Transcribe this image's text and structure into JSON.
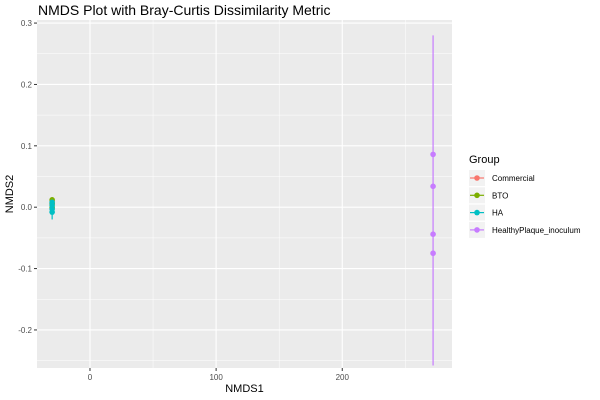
{
  "chart_data": {
    "type": "scatter",
    "title": "NMDS Plot with Bray-Curtis Dissimilarity Metric",
    "xlabel": "NMDS1",
    "ylabel": "NMDS2",
    "xlim": [
      -42,
      287
    ],
    "ylim": [
      -0.262,
      0.305
    ],
    "x_ticks": [
      0,
      100,
      200
    ],
    "x_tick_labels": [
      "0",
      "100",
      "200"
    ],
    "y_ticks": [
      -0.2,
      -0.1,
      0.0,
      0.1,
      0.2,
      0.3
    ],
    "y_tick_labels": [
      "-0.2",
      "-0.1",
      "0.0",
      "0.1",
      "0.2",
      "0.3"
    ],
    "grid": true,
    "legend": {
      "title": "Group",
      "placement": "right"
    },
    "series": [
      {
        "name": "Commercial",
        "color": "#F8766D",
        "points": [
          {
            "x": -30,
            "y": 0.01
          },
          {
            "x": -30,
            "y": 0.005
          },
          {
            "x": -30,
            "y": -0.002
          }
        ],
        "error_bar": [
          -0.008,
          0.014
        ]
      },
      {
        "name": "BTO",
        "color": "#7CAE00",
        "points": [
          {
            "x": -30,
            "y": 0.012
          },
          {
            "x": -30,
            "y": 0.006
          },
          {
            "x": -30,
            "y": 0.0
          }
        ],
        "error_bar": [
          -0.01,
          0.016
        ]
      },
      {
        "name": "HA",
        "color": "#00BFC4",
        "points": [
          {
            "x": -30,
            "y": 0.003
          },
          {
            "x": -30,
            "y": -0.003
          },
          {
            "x": -30,
            "y": -0.008
          },
          {
            "x": -30,
            "y": 0.008
          }
        ],
        "error_bar": [
          -0.02,
          0.014
        ]
      },
      {
        "name": "HealthyPlaque_inoculum",
        "color": "#C77CFF",
        "points": [
          {
            "x": 272,
            "y": 0.086
          },
          {
            "x": 272,
            "y": 0.034
          },
          {
            "x": 272,
            "y": -0.044
          },
          {
            "x": 272,
            "y": -0.075
          }
        ],
        "error_bar": [
          -0.258,
          0.28
        ]
      }
    ]
  }
}
